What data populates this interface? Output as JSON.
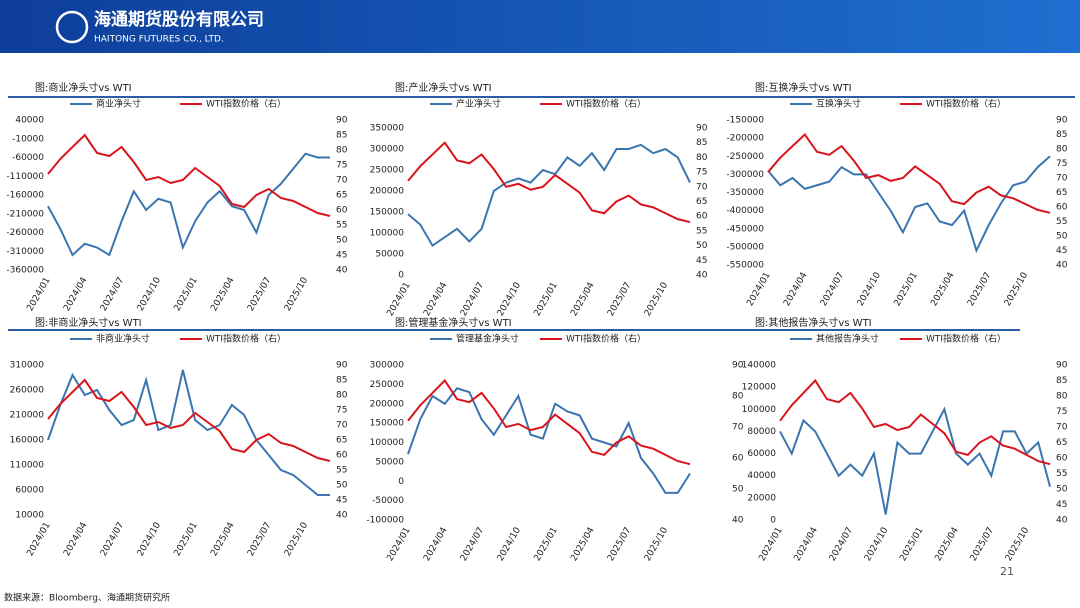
{
  "header": {
    "company": "海通期货股份有限公司",
    "company_en": "HAITONG FUTURES CO., LTD."
  },
  "footer": {
    "source": "数据来源：Bloomberg、海通期货研究所",
    "page": "21"
  },
  "chart_data": [
    {
      "type": "line",
      "title": "图:商业净头寸vs WTI",
      "x": [
        "2024/01",
        "2024/02",
        "2024/03",
        "2024/04",
        "2024/05",
        "2024/06",
        "2024/07",
        "2024/08",
        "2024/09",
        "2024/10",
        "2024/11",
        "2024/12",
        "2025/01",
        "2025/02",
        "2025/03",
        "2025/04",
        "2025/05",
        "2025/06",
        "2025/07",
        "2025/08",
        "2025/09",
        "2025/10",
        "2025/11",
        "2025/12"
      ],
      "xticks": [
        "2024/01",
        "2024/04",
        "2024/07",
        "2024/10",
        "2025/01",
        "2025/04",
        "2025/07",
        "2025/10"
      ],
      "ylim": [
        -360000,
        40000
      ],
      "yticks": [
        40000,
        -10000,
        -60000,
        -110000,
        -160000,
        -210000,
        -260000,
        -310000,
        -360000
      ],
      "y2lim": [
        40,
        90
      ],
      "y2ticks": [
        40,
        45,
        50,
        55,
        60,
        65,
        70,
        75,
        80,
        85,
        90
      ],
      "series": [
        {
          "name": "商业净头寸",
          "color": "#3b75b0",
          "values": [
            -190000,
            -250000,
            -320000,
            -290000,
            -300000,
            -320000,
            -230000,
            -150000,
            -200000,
            -170000,
            -180000,
            -300000,
            -230000,
            -180000,
            -150000,
            -190000,
            -200000,
            -260000,
            -160000,
            -130000,
            -90000,
            -50000,
            -60000,
            -60000
          ]
        },
        {
          "name": "WTI指数价格（右）",
          "color": "#d9141c",
          "axis": "y2",
          "values": [
            72,
            77,
            81,
            85,
            79,
            78,
            81,
            76,
            70,
            71,
            69,
            70,
            74,
            71,
            68,
            62,
            61,
            65,
            67,
            64,
            63,
            61,
            59,
            58
          ]
        }
      ]
    },
    {
      "type": "line",
      "title": "图:产业净头寸vs WTI",
      "x": [
        "2024/01",
        "2024/02",
        "2024/03",
        "2024/04",
        "2024/05",
        "2024/06",
        "2024/07",
        "2024/08",
        "2024/09",
        "2024/10",
        "2024/11",
        "2024/12",
        "2025/01",
        "2025/02",
        "2025/03",
        "2025/04",
        "2025/05",
        "2025/06",
        "2025/07",
        "2025/08",
        "2025/09",
        "2025/10",
        "2025/11",
        "2025/12"
      ],
      "xticks": [
        "2024/01",
        "2024/04",
        "2024/07",
        "2024/10",
        "2025/01",
        "2025/04",
        "2025/07",
        "2025/10"
      ],
      "ylim": [
        0,
        350000
      ],
      "yticks": [
        0,
        50000,
        100000,
        150000,
        200000,
        250000,
        300000,
        350000
      ],
      "y2lim": [
        40,
        90
      ],
      "y2ticks": [
        40,
        45,
        50,
        55,
        60,
        65,
        70,
        75,
        80,
        85,
        90
      ],
      "series": [
        {
          "name": "产业净头寸",
          "color": "#3b75b0",
          "values": [
            145000,
            120000,
            70000,
            90000,
            110000,
            80000,
            110000,
            200000,
            220000,
            230000,
            220000,
            250000,
            240000,
            280000,
            260000,
            290000,
            250000,
            300000,
            300000,
            310000,
            290000,
            300000,
            280000,
            220000
          ]
        },
        {
          "name": "WTI指数价格（右）",
          "color": "#d9141c",
          "axis": "y2",
          "values": [
            72,
            77,
            81,
            85,
            79,
            78,
            81,
            76,
            70,
            71,
            69,
            70,
            74,
            71,
            68,
            62,
            61,
            65,
            67,
            64,
            63,
            61,
            59,
            58
          ]
        }
      ]
    },
    {
      "type": "line",
      "title": "图:互换净头寸vs WTI",
      "x": [
        "2024/01",
        "2024/02",
        "2024/03",
        "2024/04",
        "2024/05",
        "2024/06",
        "2024/07",
        "2024/08",
        "2024/09",
        "2024/10",
        "2024/11",
        "2024/12",
        "2025/01",
        "2025/02",
        "2025/03",
        "2025/04",
        "2025/05",
        "2025/06",
        "2025/07",
        "2025/08",
        "2025/09",
        "2025/10",
        "2025/11",
        "2025/12"
      ],
      "xticks": [
        "2024/01",
        "2024/04",
        "2024/07",
        "2024/10",
        "2025/01",
        "2025/04",
        "2025/07",
        "2025/10"
      ],
      "ylim": [
        -550000,
        -150000
      ],
      "yticks": [
        -150000,
        -200000,
        -250000,
        -300000,
        -350000,
        -400000,
        -450000,
        -500000,
        -550000
      ],
      "y2lim": [
        40,
        90
      ],
      "y2ticks": [
        40,
        45,
        50,
        55,
        60,
        65,
        70,
        75,
        80,
        85,
        90
      ],
      "series": [
        {
          "name": "互换净头寸",
          "color": "#3b75b0",
          "values": [
            -290000,
            -330000,
            -310000,
            -340000,
            -330000,
            -320000,
            -280000,
            -300000,
            -300000,
            -350000,
            -400000,
            -460000,
            -390000,
            -380000,
            -430000,
            -440000,
            -400000,
            -510000,
            -440000,
            -380000,
            -330000,
            -320000,
            -280000,
            -250000
          ]
        },
        {
          "name": "WTI指数价格（右）",
          "color": "#d9141c",
          "axis": "y2",
          "values": [
            72,
            77,
            81,
            85,
            79,
            78,
            81,
            76,
            70,
            71,
            69,
            70,
            74,
            71,
            68,
            62,
            61,
            65,
            67,
            64,
            63,
            61,
            59,
            58
          ]
        }
      ]
    },
    {
      "type": "line",
      "title": "图:非商业净头寸vs WTI",
      "x": [
        "2024/01",
        "2024/02",
        "2024/03",
        "2024/04",
        "2024/05",
        "2024/06",
        "2024/07",
        "2024/08",
        "2024/09",
        "2024/10",
        "2024/11",
        "2024/12",
        "2025/01",
        "2025/02",
        "2025/03",
        "2025/04",
        "2025/05",
        "2025/06",
        "2025/07",
        "2025/08",
        "2025/09",
        "2025/10",
        "2025/11",
        "2025/12"
      ],
      "xticks": [
        "2024/01",
        "2024/04",
        "2024/07",
        "2024/10",
        "2025/01",
        "2025/04",
        "2025/07",
        "2025/10"
      ],
      "ylim": [
        10000,
        310000
      ],
      "yticks": [
        10000,
        60000,
        110000,
        160000,
        210000,
        260000,
        310000
      ],
      "y2lim": [
        40,
        90
      ],
      "y2ticks": [
        40,
        45,
        50,
        55,
        60,
        65,
        70,
        75,
        80,
        85,
        90
      ],
      "series": [
        {
          "name": "非商业净头寸",
          "color": "#3b75b0",
          "values": [
            160000,
            230000,
            290000,
            250000,
            260000,
            220000,
            190000,
            200000,
            280000,
            180000,
            190000,
            300000,
            200000,
            180000,
            190000,
            230000,
            210000,
            160000,
            130000,
            100000,
            90000,
            70000,
            50000,
            50000
          ]
        },
        {
          "name": "WTI指数价格（右）",
          "color": "#d9141c",
          "axis": "y2",
          "values": [
            72,
            77,
            81,
            85,
            79,
            78,
            81,
            76,
            70,
            71,
            69,
            70,
            74,
            71,
            68,
            62,
            61,
            65,
            67,
            64,
            63,
            61,
            59,
            58
          ]
        }
      ]
    },
    {
      "type": "line",
      "title": "图:管理基金净头寸vs WTI",
      "x": [
        "2024/01",
        "2024/02",
        "2024/03",
        "2024/04",
        "2024/05",
        "2024/06",
        "2024/07",
        "2024/08",
        "2024/09",
        "2024/10",
        "2024/11",
        "2024/12",
        "2025/01",
        "2025/02",
        "2025/03",
        "2025/04",
        "2025/05",
        "2025/06",
        "2025/07",
        "2025/08",
        "2025/09",
        "2025/10",
        "2025/11",
        "2025/12"
      ],
      "xticks": [
        "2024/01",
        "2024/04",
        "2024/07",
        "2024/10",
        "2025/01",
        "2025/04",
        "2025/07",
        "2025/10"
      ],
      "ylim": [
        -100000,
        300000
      ],
      "yticks": [
        -100000,
        -50000,
        0,
        50000,
        100000,
        150000,
        200000,
        250000,
        300000
      ],
      "y2lim": [
        40,
        90
      ],
      "series": [
        {
          "name": "管理基金净头寸",
          "color": "#3b75b0",
          "values": [
            70000,
            160000,
            220000,
            200000,
            240000,
            230000,
            160000,
            120000,
            170000,
            220000,
            120000,
            110000,
            200000,
            180000,
            170000,
            110000,
            100000,
            90000,
            150000,
            60000,
            20000,
            -30000,
            -30000,
            20000
          ]
        },
        {
          "name": "WTI指数价格（右）",
          "color": "#d9141c",
          "axis": "y2",
          "values": [
            72,
            77,
            81,
            85,
            79,
            78,
            81,
            76,
            70,
            71,
            69,
            70,
            74,
            71,
            68,
            62,
            61,
            65,
            67,
            64,
            63,
            61,
            59,
            58
          ]
        }
      ]
    },
    {
      "type": "line",
      "title": "图:其他报告净头寸vs WTI",
      "x": [
        "2024/01",
        "2024/02",
        "2024/03",
        "2024/04",
        "2024/05",
        "2024/06",
        "2024/07",
        "2024/08",
        "2024/09",
        "2024/10",
        "2024/11",
        "2024/12",
        "2025/01",
        "2025/02",
        "2025/03",
        "2025/04",
        "2025/05",
        "2025/06",
        "2025/07",
        "2025/08",
        "2025/09",
        "2025/10",
        "2025/11",
        "2025/12"
      ],
      "xticks": [
        "2024/01",
        "2024/04",
        "2024/07",
        "2024/10",
        "2025/01",
        "2025/04",
        "2025/07",
        "2025/10"
      ],
      "ylim": [
        0,
        140000
      ],
      "yticks": [
        0,
        20000,
        40000,
        60000,
        80000,
        100000,
        120000,
        140000
      ],
      "y3lim": [
        40,
        90
      ],
      "y3ticks": [
        40,
        50,
        60,
        70,
        80,
        90
      ],
      "y2lim": [
        40,
        90
      ],
      "y2ticks": [
        40,
        45,
        50,
        55,
        60,
        65,
        70,
        75,
        80,
        85,
        90
      ],
      "series": [
        {
          "name": "其他报告净头寸",
          "color": "#3b75b0",
          "values": [
            80000,
            60000,
            90000,
            80000,
            60000,
            40000,
            50000,
            40000,
            60000,
            5000,
            70000,
            60000,
            60000,
            80000,
            100000,
            60000,
            50000,
            60000,
            40000,
            80000,
            80000,
            60000,
            70000,
            30000
          ]
        },
        {
          "name": "WTI指数价格（右）",
          "color": "#d9141c",
          "axis": "y2",
          "values": [
            72,
            77,
            81,
            85,
            79,
            78,
            81,
            76,
            70,
            71,
            69,
            70,
            74,
            71,
            68,
            62,
            61,
            65,
            67,
            64,
            63,
            61,
            59,
            58
          ]
        }
      ]
    }
  ]
}
